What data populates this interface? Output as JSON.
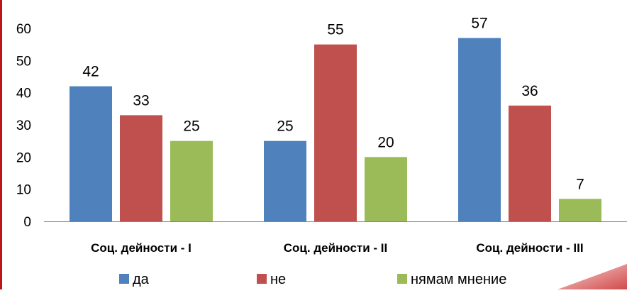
{
  "chart_data": {
    "type": "bar",
    "title": "",
    "xlabel": "",
    "ylabel": "",
    "categories": [
      "Соц. дейности - I",
      "Соц. дейности - II",
      "Соц. дейности - III"
    ],
    "series": [
      {
        "name": "да",
        "color": "#4f81bd",
        "values": [
          42,
          25,
          57
        ]
      },
      {
        "name": "не",
        "color": "#c0504d",
        "values": [
          33,
          55,
          36
        ]
      },
      {
        "name": "нямам мнение",
        "color": "#9bbb59",
        "values": [
          25,
          20,
          7
        ]
      }
    ],
    "ylim": [
      0,
      60
    ],
    "yticks": [
      0,
      10,
      20,
      30,
      40,
      50,
      60
    ],
    "data_labels": true,
    "grid": false,
    "legend_position": "bottom"
  }
}
